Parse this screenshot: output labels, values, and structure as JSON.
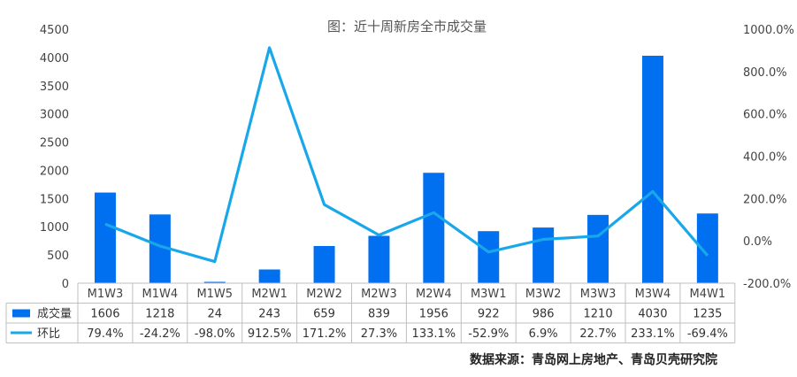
{
  "chart_data": {
    "type": "bar+line",
    "title": "图：近十周新房全市成交量",
    "categories": [
      "M1W3",
      "M1W4",
      "M1W5",
      "M2W1",
      "M2W2",
      "M2W3",
      "M2W4",
      "M3W1",
      "M3W2",
      "M3W3",
      "M3W4",
      "M4W1"
    ],
    "series": [
      {
        "name": "成交量",
        "type": "bar",
        "axis": "left",
        "color": "#0070f0",
        "values": [
          1606,
          1218,
          24,
          243,
          659,
          839,
          1956,
          922,
          986,
          1210,
          4030,
          1235
        ],
        "labels": [
          "1606",
          "1218",
          "24",
          "243",
          "659",
          "839",
          "1956",
          "922",
          "986",
          "1210",
          "4030",
          "1235"
        ]
      },
      {
        "name": "环比",
        "type": "line",
        "axis": "right",
        "color": "#18a8ea",
        "values": [
          79.4,
          -24.2,
          -98.0,
          912.5,
          171.2,
          27.3,
          133.1,
          -52.9,
          6.9,
          22.7,
          233.1,
          -69.4
        ],
        "labels": [
          "79.4%",
          "-24.2%",
          "-98.0%",
          "912.5%",
          "171.2%",
          "27.3%",
          "133.1%",
          "-52.9%",
          "6.9%",
          "22.7%",
          "233.1%",
          "-69.4%"
        ]
      }
    ],
    "y_left": {
      "min": 0,
      "max": 4500,
      "ticks": [
        "0",
        "500",
        "1000",
        "1500",
        "2000",
        "2500",
        "3000",
        "3500",
        "4000",
        "4500"
      ]
    },
    "y_right": {
      "min": -200,
      "max": 1000,
      "ticks": [
        "-200.0%",
        "0.0%",
        "200.0%",
        "400.0%",
        "600.0%",
        "800.0%",
        "1000.0%"
      ]
    },
    "grid": false,
    "legend": "data-table"
  },
  "source_text": "数据来源：青岛网上房地产、青岛贝壳研究院"
}
